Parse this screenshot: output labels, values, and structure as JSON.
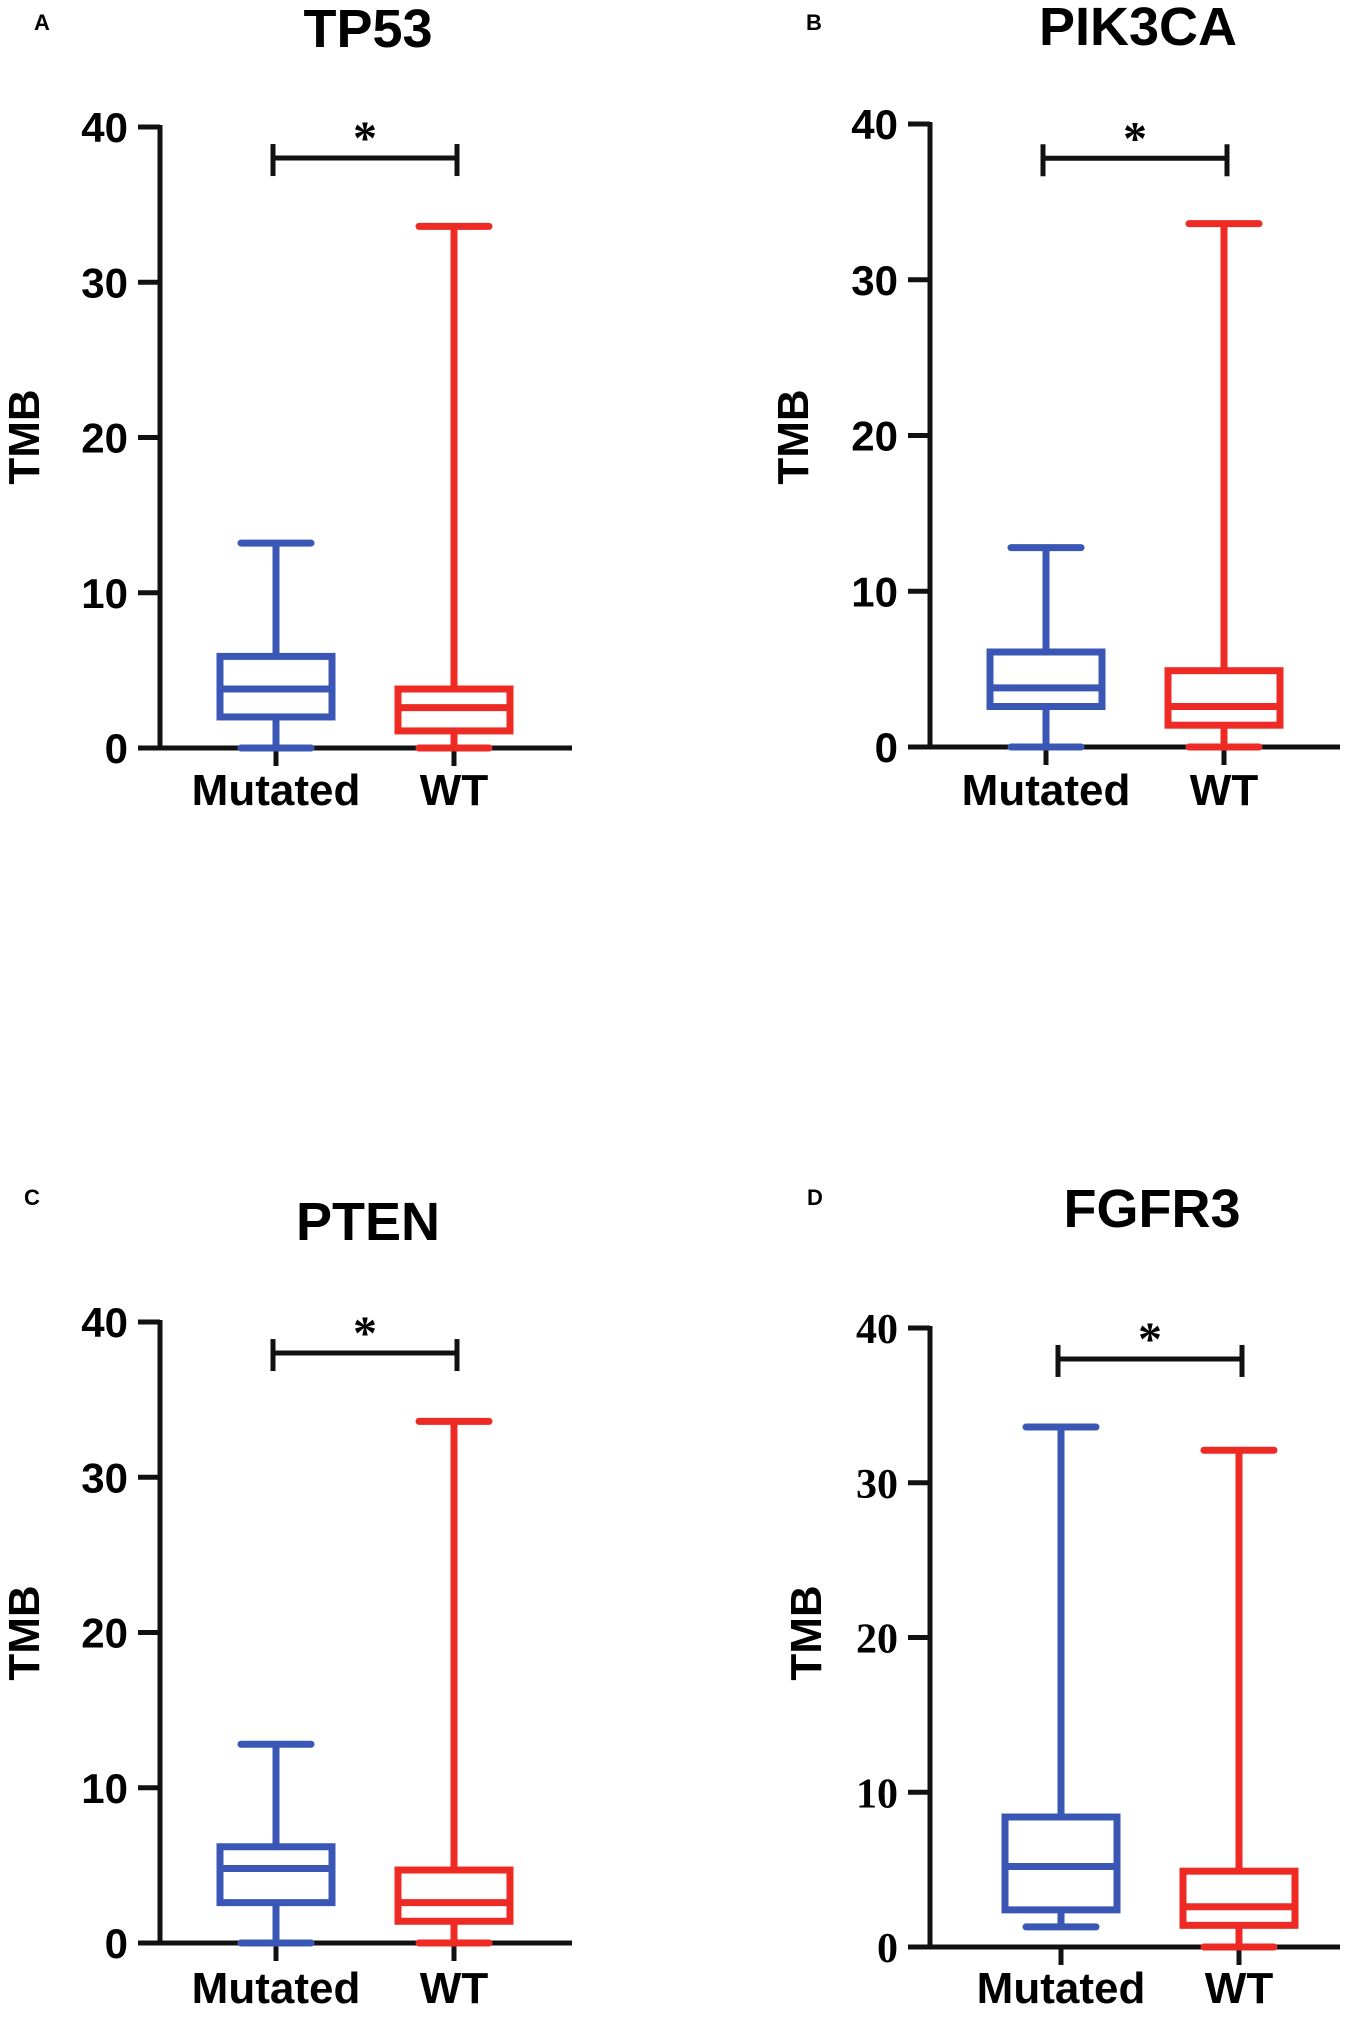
{
  "figure": {
    "colors": {
      "mutated": "#3A57B5",
      "wt": "#EE2A24",
      "axis": "#111111"
    }
  },
  "chart_data": [
    {
      "type": "box",
      "panel_label": "A",
      "title": "TP53",
      "ylabel": "TMB",
      "xlabel": "",
      "ylim": [
        0,
        40
      ],
      "yticks": [
        0,
        10,
        20,
        30,
        40
      ],
      "tick_font": "sans",
      "categories": [
        "Mutated",
        "WT"
      ],
      "series": [
        {
          "name": "Mutated",
          "color": "#3A57B5",
          "min": 0,
          "q1": 2,
          "median": 3.8,
          "q3": 5.9,
          "max": 13.2
        },
        {
          "name": "WT",
          "color": "#EE2A24",
          "min": 0,
          "q1": 1.1,
          "median": 2.6,
          "q3": 3.8,
          "max": 33.6
        }
      ],
      "significance": {
        "label": "*",
        "y": 38
      }
    },
    {
      "type": "box",
      "panel_label": "B",
      "title": "PIK3CA",
      "ylabel": "TMB",
      "xlabel": "",
      "ylim": [
        0,
        40
      ],
      "yticks": [
        0,
        10,
        20,
        30,
        40
      ],
      "tick_font": "sans",
      "categories": [
        "Mutated",
        "WT"
      ],
      "series": [
        {
          "name": "Mutated",
          "color": "#3A57B5",
          "min": 0,
          "q1": 2.6,
          "median": 3.8,
          "q3": 6.1,
          "max": 12.8
        },
        {
          "name": "WT",
          "color": "#EE2A24",
          "min": 0,
          "q1": 1.4,
          "median": 2.6,
          "q3": 4.9,
          "max": 33.6
        }
      ],
      "significance": {
        "label": "*",
        "y": 37.8
      }
    },
    {
      "type": "box",
      "panel_label": "C",
      "title": "PTEN",
      "ylabel": "TMB",
      "xlabel": "",
      "ylim": [
        0,
        40
      ],
      "yticks": [
        0,
        10,
        20,
        30,
        40
      ],
      "tick_font": "sans",
      "categories": [
        "Mutated",
        "WT"
      ],
      "series": [
        {
          "name": "Mutated",
          "color": "#3A57B5",
          "min": 0,
          "q1": 2.6,
          "median": 4.8,
          "q3": 6.2,
          "max": 12.8
        },
        {
          "name": "WT",
          "color": "#EE2A24",
          "min": 0,
          "q1": 1.4,
          "median": 2.6,
          "q3": 4.7,
          "max": 33.6
        }
      ],
      "significance": {
        "label": "*",
        "y": 38
      }
    },
    {
      "type": "box",
      "panel_label": "D",
      "title": "FGFR3",
      "ylabel": "TMB",
      "xlabel": "",
      "ylim": [
        0,
        40
      ],
      "yticks": [
        0,
        10,
        20,
        30,
        40
      ],
      "tick_font": "serif",
      "categories": [
        "Mutated",
        "WT"
      ],
      "series": [
        {
          "name": "Mutated",
          "color": "#3A57B5",
          "min": 1.3,
          "q1": 2.4,
          "median": 5.2,
          "q3": 8.4,
          "max": 33.6
        },
        {
          "name": "WT",
          "color": "#EE2A24",
          "min": 0,
          "q1": 1.4,
          "median": 2.6,
          "q3": 4.9,
          "max": 32.1
        }
      ],
      "significance": {
        "label": "*",
        "y": 38
      }
    }
  ]
}
